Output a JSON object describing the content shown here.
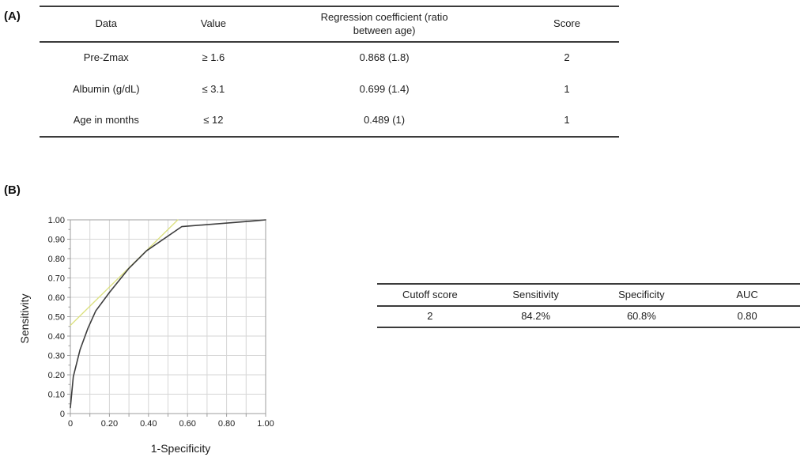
{
  "figure": {
    "background": "#ffffff",
    "panel_a_label": "(A)",
    "panel_b_label": "(B)"
  },
  "panel_a": {
    "table": {
      "headers": [
        "Data",
        "Value",
        "Regression coefficient (ratio between age)",
        "Score"
      ],
      "rows": [
        [
          "Pre-Zmax",
          "≥ 1.6",
          "0.868 (1.8)",
          "2"
        ],
        [
          "Albumin (g/dL)",
          "≤ 3.1",
          "0.699 (1.4)",
          "1"
        ],
        [
          "Age in months",
          "≤ 12",
          "0.489 (1)",
          "1"
        ]
      ]
    }
  },
  "panel_b": {
    "cutoff_table": {
      "headers": [
        "Cutoff score",
        "Sensitivity",
        "Specificity",
        "AUC"
      ],
      "rows": [
        [
          "2",
          "84.2%",
          "60.8%",
          "0.80"
        ]
      ]
    }
  },
  "chart_data": {
    "type": "line",
    "title": "",
    "xlabel": "1-Specificity",
    "ylabel": "Sensitivity",
    "xlim": [
      0,
      1
    ],
    "ylim": [
      0,
      1
    ],
    "grid": true,
    "legend": "none",
    "x_tick_values": [
      0,
      0.2,
      0.4,
      0.6,
      0.8,
      1.0
    ],
    "x_tick_labels": [
      "0",
      "0.20",
      "0.40",
      "0.60",
      "0.80",
      "1.00"
    ],
    "x_minor_tick_step": 0.1,
    "y_tick_values": [
      0,
      0.1,
      0.2,
      0.3,
      0.4,
      0.5,
      0.6,
      0.7,
      0.8,
      0.9,
      1.0
    ],
    "y_tick_labels": [
      "0",
      "0.10",
      "0.20",
      "0.30",
      "0.40",
      "0.50",
      "0.60",
      "0.70",
      "0.80",
      "0.90",
      "1.00"
    ],
    "y_minor_tick_step": 0.05,
    "colors": {
      "frame": "#9c9c9c",
      "grid": "#d6d6d6",
      "tick": "#9c9c9c",
      "tick_label": "#222222"
    },
    "series": [
      {
        "name": "reference-line",
        "color": "#dce180",
        "width": 1.4,
        "points": [
          [
            0,
            0.455
          ],
          [
            0.55,
            1.0
          ]
        ]
      },
      {
        "name": "roc-curve",
        "color": "#3d3d3d",
        "width": 1.6,
        "points": [
          [
            0,
            0.03
          ],
          [
            0.015,
            0.19
          ],
          [
            0.05,
            0.33
          ],
          [
            0.09,
            0.44
          ],
          [
            0.13,
            0.53
          ],
          [
            0.2,
            0.625
          ],
          [
            0.3,
            0.75
          ],
          [
            0.39,
            0.84
          ],
          [
            0.57,
            0.965
          ],
          [
            0.95,
            0.995
          ],
          [
            1.0,
            1.0
          ]
        ]
      }
    ]
  }
}
